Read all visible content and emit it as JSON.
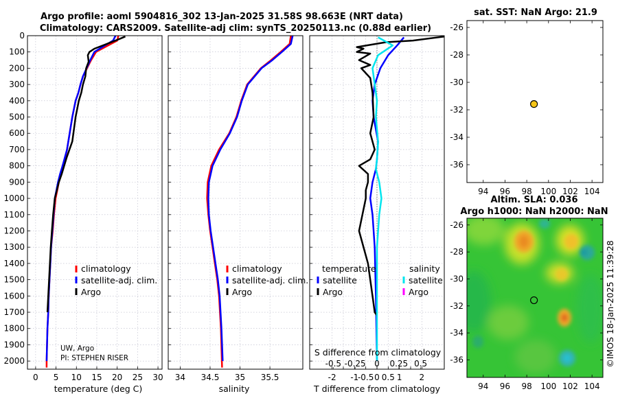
{
  "title": {
    "line1": "Argo profile: aoml 5904816_302 13-Jan-2025 31.58S 98.663E (NRT data)",
    "line2": "Climatology: CARS2009. Satellite-adj clim: synTS_20250113.nc (0.88d earlier)"
  },
  "credits": {
    "institution": "UW, Argo",
    "pi": "PI: STEPHEN RISER",
    "stamp": "©IMOS 18-Jan-2025 11:39:28"
  },
  "colors": {
    "climatology": "#ff0000",
    "satellite": "#0000ff",
    "argo": "#000000",
    "sat_salinity": "#00e5ee",
    "argo_salinity": "#ff00ff",
    "marker": "#f5c518",
    "map_background": "#36c436"
  },
  "legend_profiles": [
    "climatology",
    "satellite-adj. clim.",
    "Argo"
  ],
  "legend_diff": {
    "temperature_header": "temperature",
    "salinity_header": "salinity",
    "entries": [
      "satellite",
      "Argo"
    ]
  },
  "chart_data": [
    {
      "id": "temperature",
      "type": "line",
      "xlabel": "temperature (deg C)",
      "ylabel": "",
      "xlim": [
        -2,
        31
      ],
      "ylim": [
        2050,
        0
      ],
      "xticks": [
        0,
        5,
        10,
        15,
        20,
        25,
        30
      ],
      "yticks": [
        0,
        100,
        200,
        300,
        400,
        500,
        600,
        700,
        800,
        900,
        1000,
        1100,
        1200,
        1300,
        1400,
        1500,
        1600,
        1700,
        1800,
        1900,
        2000
      ],
      "grid": true,
      "series": [
        {
          "name": "climatology",
          "color": "#ff0000",
          "x": [
            20.3,
            20.0,
            17.8,
            14.8,
            13.6,
            12.6,
            11.6,
            11.0,
            10.5,
            9.8,
            9.0,
            7.7,
            6.8,
            6.2,
            5.7,
            5.3,
            4.9,
            4.5,
            4.2,
            3.8,
            3.6,
            3.4,
            3.2,
            3.1,
            2.9,
            2.8,
            2.7,
            2.7
          ],
          "y": [
            0,
            30,
            60,
            100,
            150,
            200,
            250,
            300,
            350,
            400,
            500,
            700,
            800,
            850,
            900,
            950,
            1000,
            1100,
            1200,
            1300,
            1400,
            1500,
            1600,
            1700,
            1800,
            1900,
            2000,
            2040
          ]
        },
        {
          "name": "satellite-adj. clim.",
          "color": "#0000ff",
          "x": [
            19.6,
            19.0,
            17.0,
            14.4,
            13.4,
            12.5,
            11.6,
            11.0,
            10.5,
            9.8,
            9.0,
            7.7,
            6.6,
            6.0,
            5.5,
            5.1,
            4.7,
            4.4,
            4.1,
            3.8,
            3.6,
            3.4,
            3.2,
            3.1,
            2.9,
            2.8,
            2.7
          ],
          "y": [
            0,
            30,
            60,
            100,
            150,
            200,
            250,
            300,
            350,
            400,
            500,
            700,
            800,
            850,
            900,
            950,
            1000,
            1100,
            1200,
            1300,
            1400,
            1500,
            1600,
            1700,
            1800,
            1900,
            2000
          ]
        },
        {
          "name": "Argo",
          "color": "#000000",
          "x": [
            22.0,
            20.6,
            17.5,
            14.4,
            13.2,
            12.8,
            13.0,
            12.4,
            12.2,
            11.6,
            11.2,
            10.6,
            9.8,
            9.0,
            7.6,
            6.4,
            5.7,
            5.2,
            4.7,
            4.3,
            4.0,
            3.7,
            3.5,
            3.3,
            3.1,
            2.9
          ],
          "y": [
            5,
            20,
            50,
            80,
            100,
            120,
            160,
            200,
            250,
            300,
            350,
            400,
            500,
            650,
            750,
            850,
            900,
            950,
            1000,
            1100,
            1200,
            1300,
            1400,
            1500,
            1600,
            1700
          ]
        }
      ]
    },
    {
      "id": "salinity",
      "type": "line",
      "xlabel": "salinity",
      "ylabel": "",
      "xlim": [
        33.8,
        36.05
      ],
      "ylim": [
        2050,
        0
      ],
      "xticks": [
        34,
        34.5,
        35,
        35.5
      ],
      "grid": true,
      "series": [
        {
          "name": "climatology",
          "color": "#ff0000",
          "x": [
            35.85,
            35.83,
            35.68,
            35.52,
            35.35,
            35.12,
            35.02,
            34.94,
            34.82,
            34.65,
            34.52,
            34.46,
            34.45,
            34.47,
            34.5,
            34.54,
            34.58,
            34.62,
            34.65,
            34.68,
            34.7
          ],
          "y": [
            0,
            50,
            100,
            150,
            200,
            300,
            400,
            500,
            600,
            700,
            800,
            900,
            1000,
            1100,
            1200,
            1300,
            1400,
            1500,
            1600,
            1800,
            2040
          ]
        },
        {
          "name": "satellite-adj. clim.",
          "color": "#0000ff",
          "x": [
            35.88,
            35.85,
            35.7,
            35.54,
            35.36,
            35.13,
            35.03,
            34.95,
            34.83,
            34.67,
            34.54,
            34.48,
            34.47,
            34.48,
            34.51,
            34.55,
            34.59,
            34.63,
            34.66,
            34.69,
            34.71
          ],
          "y": [
            0,
            50,
            100,
            150,
            200,
            300,
            400,
            500,
            600,
            700,
            800,
            900,
            1000,
            1100,
            1200,
            1300,
            1400,
            1500,
            1600,
            1800,
            2000
          ]
        }
      ]
    },
    {
      "id": "difference",
      "type": "line",
      "xlabel": "T difference from climatology",
      "xlabel_top": "S difference from climatology",
      "xlim": [
        -3,
        3
      ],
      "ylim": [
        2050,
        0
      ],
      "xticks": [
        -2,
        -1.5,
        -1,
        -0.5,
        0,
        0.5,
        1,
        1.5,
        2
      ],
      "xticklabels": [
        "-2",
        "",
        "-1",
        "-0.5",
        "0",
        "0.5",
        "1",
        "",
        "2"
      ],
      "s_xticks": [
        -0.5,
        -0.25,
        0,
        0.25,
        0.5
      ],
      "s_xticklabels": [
        "-0.5",
        "-0.25",
        "0",
        "0.25",
        "0.5"
      ],
      "grid": true,
      "series": [
        {
          "name": "temperature satellite",
          "color": "#0000ff",
          "x": [
            1.2,
            0.9,
            0.5,
            0.15,
            -0.1,
            -0.2,
            -0.15,
            0.05,
            0.0,
            -0.05,
            -0.2,
            -0.3,
            -0.2,
            -0.1,
            -0.05,
            0.0
          ],
          "y": [
            10,
            60,
            120,
            200,
            300,
            400,
            500,
            650,
            760,
            820,
            900,
            1000,
            1100,
            1300,
            1600,
            2000
          ]
        },
        {
          "name": "temperature Argo",
          "color": "#000000",
          "x": [
            3.0,
            1.6,
            0.4,
            -0.9,
            -0.6,
            -0.9,
            -0.3,
            -0.8,
            -0.3,
            -0.7,
            -0.3,
            -0.2,
            -0.15,
            -0.3,
            -0.1,
            -0.3,
            -0.8,
            -0.4,
            -0.4,
            -0.5,
            -0.5,
            -0.8,
            -0.4,
            -0.2,
            -0.1,
            0.0
          ],
          "y": [
            5,
            30,
            40,
            70,
            80,
            100,
            110,
            150,
            180,
            200,
            260,
            350,
            500,
            600,
            700,
            760,
            800,
            850,
            900,
            950,
            1000,
            1200,
            1400,
            1600,
            1700,
            1720
          ]
        },
        {
          "name": "salinity satellite",
          "color": "#00e5ee",
          "x": [
            0.05,
            0.7,
            0.05,
            -0.2,
            -0.1,
            0.0,
            -0.05,
            0.05,
            0.0,
            -0.05,
            0.1,
            0.2,
            0.1,
            0.0,
            0.0,
            0.0
          ],
          "y": [
            10,
            60,
            120,
            200,
            300,
            400,
            500,
            650,
            760,
            820,
            900,
            1000,
            1100,
            1300,
            1600,
            2000
          ]
        }
      ]
    },
    {
      "id": "sst_map",
      "type": "scatter",
      "title": "sat. SST: NaN  Argo: 21.9",
      "xlim": [
        92.5,
        105
      ],
      "ylim": [
        -37.3,
        -25.5
      ],
      "xticks": [
        94,
        96,
        98,
        100,
        102,
        104
      ],
      "yticks": [
        -26,
        -28,
        -30,
        -32,
        -34,
        -36
      ],
      "points": [
        {
          "x": 98.663,
          "y": -31.58
        }
      ]
    },
    {
      "id": "sla_map",
      "type": "heatmap",
      "title": "Altim. SLA: 0.036",
      "title2": "Argo h1000: NaN h2000: NaN",
      "xlim": [
        92.5,
        105
      ],
      "ylim": [
        -37.3,
        -25.5
      ],
      "xticks": [
        94,
        96,
        98,
        100,
        102,
        104
      ],
      "yticks": [
        -26,
        -28,
        -30,
        -32,
        -34,
        -36
      ],
      "points": [
        {
          "x": 98.663,
          "y": -31.58
        }
      ]
    }
  ]
}
